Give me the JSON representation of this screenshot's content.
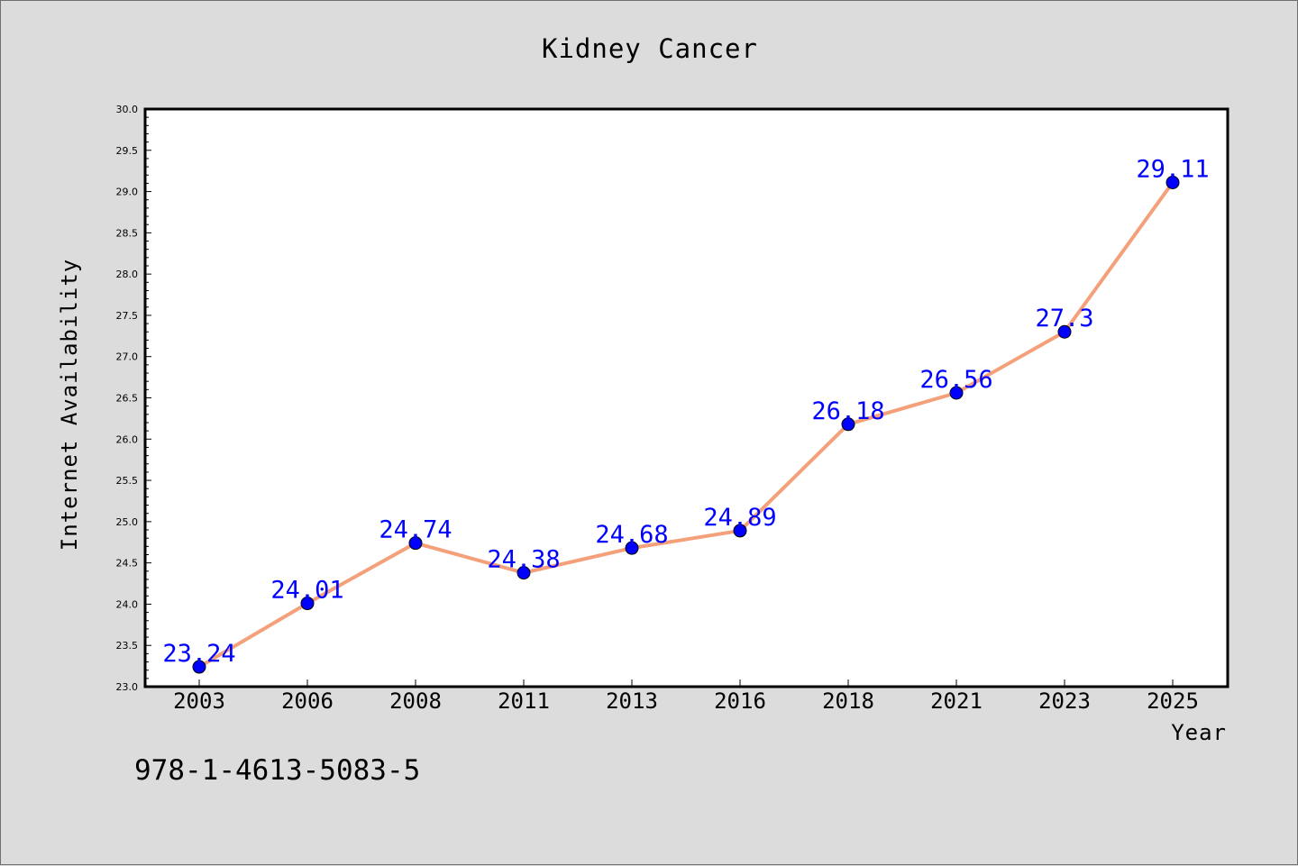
{
  "chart_data": {
    "type": "line",
    "title": "Kidney Cancer",
    "xlabel": "Year",
    "ylabel": "Internet Availability",
    "categories": [
      "2003",
      "2006",
      "2008",
      "2011",
      "2013",
      "2016",
      "2018",
      "2021",
      "2023",
      "2025"
    ],
    "series": [
      {
        "values": [
          23.24,
          24.01,
          24.74,
          24.38,
          24.68,
          24.89,
          26.18,
          26.56,
          27.3,
          29.11
        ],
        "data_labels": [
          "23.24",
          "24.01",
          "24.74",
          "24.38",
          "24.68",
          "24.89",
          "26.18",
          "26.56",
          "27.3",
          "29.11"
        ],
        "line_color": "#f4a07a",
        "marker_color": "#0000ff"
      }
    ],
    "ylim": [
      23.0,
      30.0
    ],
    "yticks": [
      "23.0",
      "23.5",
      "24.0",
      "24.5",
      "25.0",
      "25.5",
      "26.0",
      "26.5",
      "27.0",
      "27.5",
      "28.0",
      "28.5",
      "29.0",
      "29.5",
      "30.0"
    ],
    "grid": false,
    "colors": {
      "background": "#dcdcdc",
      "plot_background": "#ffffff",
      "label_color": "#0000ff"
    }
  },
  "footer_text": "978-1-4613-5083-5"
}
